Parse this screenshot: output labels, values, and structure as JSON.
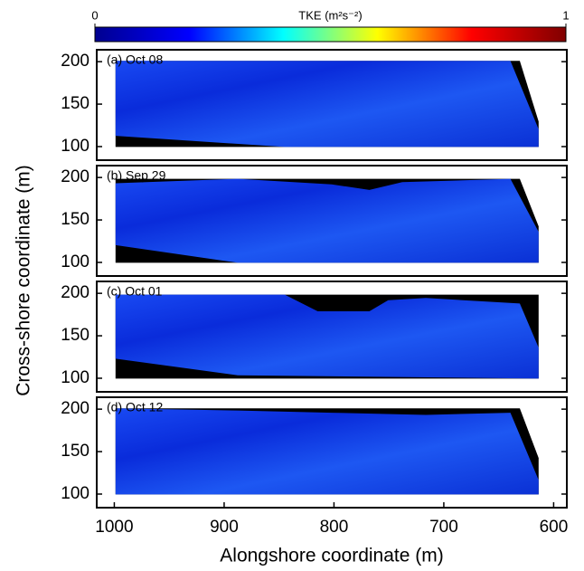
{
  "chart_data": [
    {
      "type": "colorbar",
      "label": "TKE (m²s⁻²)",
      "xlim": [
        0,
        1
      ],
      "xticks": [
        0,
        1
      ],
      "colors": [
        "#00008f",
        "#0000ff",
        "#00ffff",
        "#ffff00",
        "#ff0000",
        "#800000"
      ]
    },
    {
      "type": "heatmap",
      "title": "(a) Oct 08",
      "xlim": [
        1016,
        588
      ],
      "ylim": [
        84,
        214
      ],
      "yticks": [
        100,
        150,
        200
      ]
    },
    {
      "type": "heatmap",
      "title": "(b) Sep 29",
      "xlim": [
        1016,
        588
      ],
      "ylim": [
        84,
        214
      ],
      "yticks": [
        100,
        150,
        200
      ],
      "ylabel": "Cross-shore coordinate (m)"
    },
    {
      "type": "heatmap",
      "title": "(c) Oct 01",
      "xlim": [
        1016,
        588
      ],
      "ylim": [
        84,
        214
      ],
      "yticks": [
        100,
        150,
        200
      ]
    },
    {
      "type": "heatmap",
      "title": "(d) Oct 12",
      "xlim": [
        1016,
        588
      ],
      "ylim": [
        84,
        214
      ],
      "yticks": [
        100,
        150,
        200
      ],
      "xticks": [
        1000,
        900,
        800,
        700,
        600
      ],
      "xlabel": "Alongshore coordinate (m)"
    }
  ]
}
